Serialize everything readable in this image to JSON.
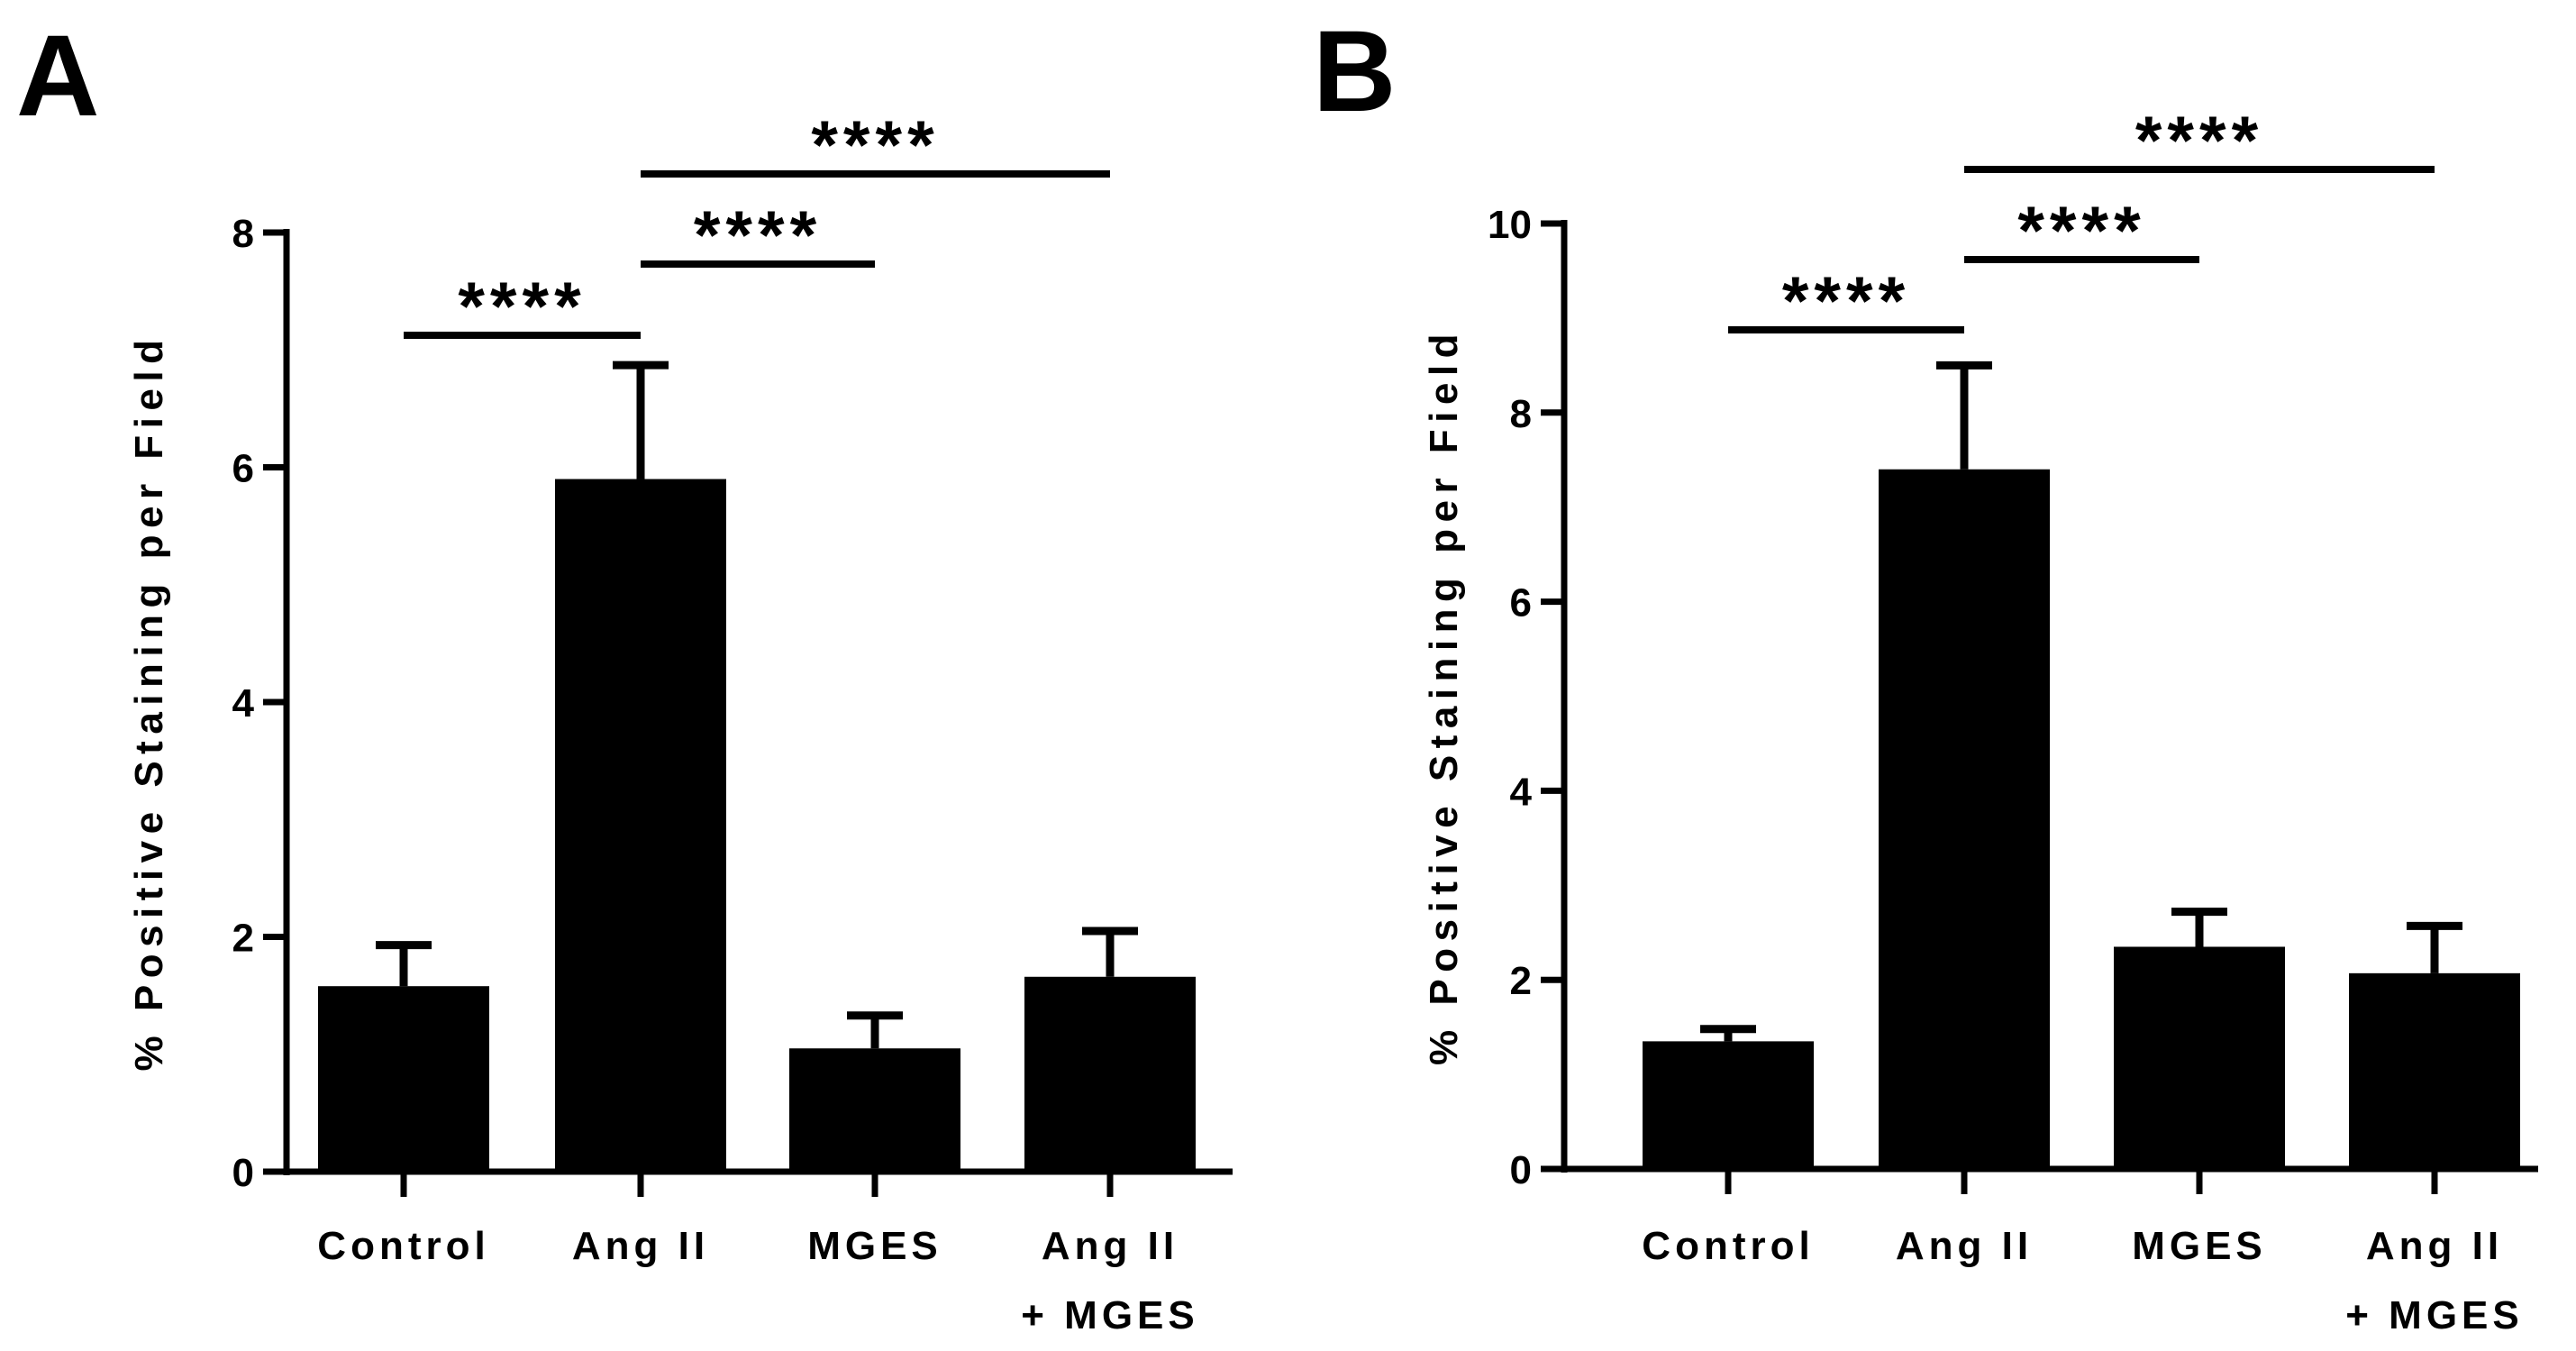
{
  "chart_data": [
    {
      "panel": "A",
      "type": "bar",
      "categories": [
        [
          "Control"
        ],
        [
          "Ang II"
        ],
        [
          "MGES"
        ],
        [
          "Ang II",
          "+ MGES"
        ]
      ],
      "values": [
        1.58,
        5.9,
        1.05,
        1.66
      ],
      "error_upper": [
        1.93,
        6.87,
        1.33,
        2.05
      ],
      "ylabel": "% Positive Staining per Field",
      "ylim": [
        0,
        8
      ],
      "yticks": [
        0,
        2,
        4,
        6,
        8
      ],
      "significance": [
        {
          "from": 0,
          "to": 1,
          "label": "****"
        },
        {
          "from": 1,
          "to": 2,
          "label": "****"
        },
        {
          "from": 1,
          "to": 3,
          "label": "****"
        }
      ]
    },
    {
      "panel": "B",
      "type": "bar",
      "categories": [
        [
          "Control"
        ],
        [
          "Ang II"
        ],
        [
          "MGES"
        ],
        [
          "Ang II",
          "+ MGES"
        ]
      ],
      "values": [
        1.35,
        7.4,
        2.35,
        2.07
      ],
      "error_upper": [
        1.48,
        8.5,
        2.72,
        2.57
      ],
      "ylabel": "% Positive Staining per Field",
      "ylim": [
        0,
        10
      ],
      "yticks": [
        0,
        2,
        4,
        6,
        8,
        10
      ],
      "significance": [
        {
          "from": 0,
          "to": 1,
          "label": "****"
        },
        {
          "from": 1,
          "to": 2,
          "label": "****"
        },
        {
          "from": 1,
          "to": 3,
          "label": "****"
        }
      ]
    }
  ],
  "colors": {
    "bar": "#000000",
    "axis": "#000000",
    "background": "#ffffff"
  }
}
